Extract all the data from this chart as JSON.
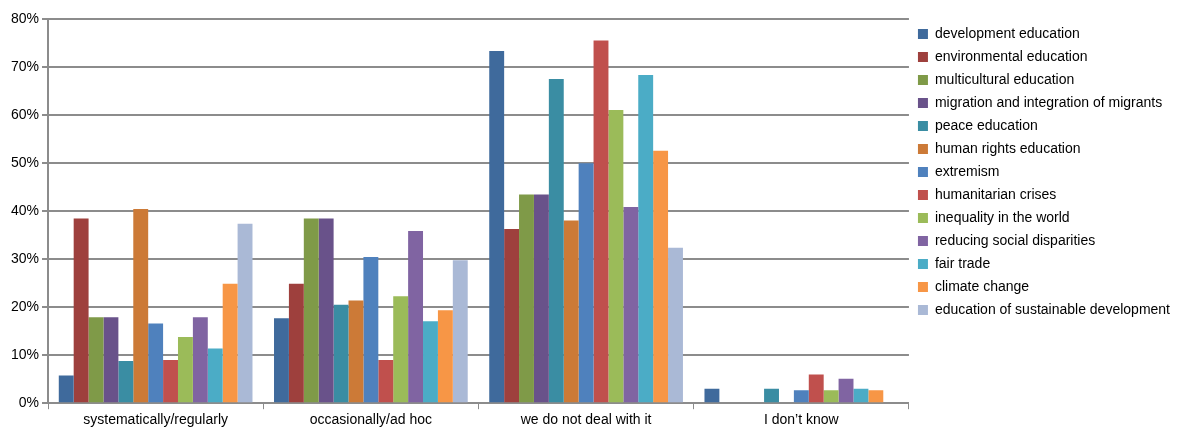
{
  "chart_data": {
    "type": "bar",
    "categories": [
      "systematically/regularly",
      "occasionally/ad hoc",
      "we do not deal with it",
      "I don’t know"
    ],
    "series": [
      {
        "name": "development education",
        "color": "#3f6a9c",
        "values": [
          5.8,
          17.7,
          73.4,
          3.0
        ]
      },
      {
        "name": "environmental education",
        "color": "#9e403d",
        "values": [
          38.5,
          24.9,
          36.3,
          null
        ]
      },
      {
        "name": "multicultural education",
        "color": "#7f9a48",
        "values": [
          17.9,
          38.5,
          43.5,
          null
        ]
      },
      {
        "name": "migration and integration of migrants",
        "color": "#69528a",
        "values": [
          17.9,
          38.5,
          43.5,
          null
        ]
      },
      {
        "name": "peace education",
        "color": "#3a8da3",
        "values": [
          8.8,
          20.5,
          67.6,
          3.0
        ]
      },
      {
        "name": "human rights education",
        "color": "#cc7a37",
        "values": [
          40.5,
          21.4,
          38.1,
          null
        ]
      },
      {
        "name": "extremism",
        "color": "#4f81bd",
        "values": [
          16.6,
          30.5,
          50.0,
          2.7
        ]
      },
      {
        "name": "humanitarian crises",
        "color": "#c0504d",
        "values": [
          9.0,
          9.0,
          75.6,
          6.0
        ]
      },
      {
        "name": "inequality in the world",
        "color": "#9bbb59",
        "values": [
          13.8,
          22.3,
          61.1,
          2.7
        ]
      },
      {
        "name": "reducing social disparities",
        "color": "#8064a2",
        "values": [
          17.9,
          35.9,
          40.9,
          5.1
        ]
      },
      {
        "name": "fair trade",
        "color": "#4bacc6",
        "values": [
          11.4,
          17.1,
          68.4,
          3.0
        ]
      },
      {
        "name": "climate change",
        "color": "#f79646",
        "values": [
          24.9,
          19.4,
          52.6,
          2.7
        ]
      },
      {
        "name": "education of sustainable development",
        "color": "#aab9d6",
        "values": [
          37.4,
          29.8,
          32.4,
          null
        ]
      }
    ],
    "ylim": [
      0,
      80
    ],
    "yticks": [
      {
        "value": 0,
        "label": "0%"
      },
      {
        "value": 10,
        "label": "10%"
      },
      {
        "value": 20,
        "label": "20%"
      },
      {
        "value": 30,
        "label": "30%"
      },
      {
        "value": 40,
        "label": "40%"
      },
      {
        "value": 50,
        "label": "50%"
      },
      {
        "value": 60,
        "label": "60%"
      },
      {
        "value": 70,
        "label": "70%"
      },
      {
        "value": 80,
        "label": "80%"
      }
    ],
    "grid": "y",
    "legend": "right"
  }
}
